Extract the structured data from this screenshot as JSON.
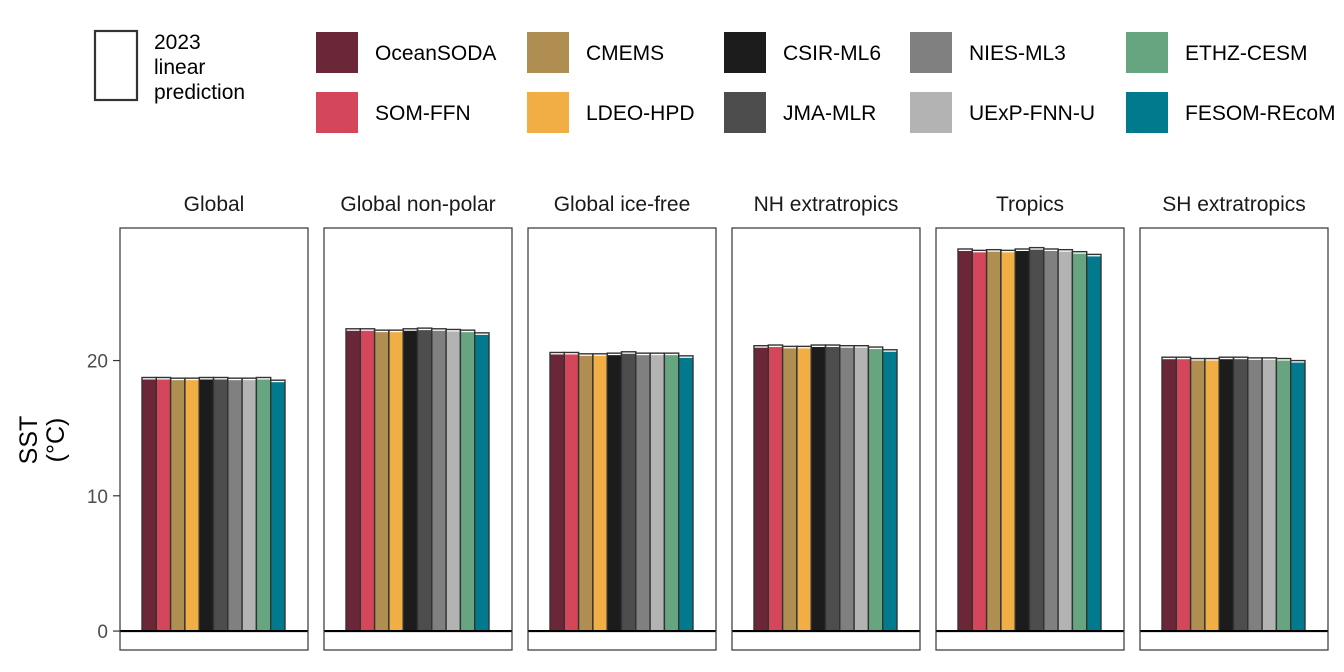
{
  "legend": {
    "linear_prediction_label": [
      "2023",
      "linear",
      "prediction"
    ],
    "products": [
      {
        "name": "OceanSODA",
        "color": "#6B2737"
      },
      {
        "name": "SOM-FFN",
        "color": "#D4475B"
      },
      {
        "name": "CMEMS",
        "color": "#B08E52"
      },
      {
        "name": "LDEO-HPD",
        "color": "#F0AE45"
      },
      {
        "name": "CSIR-ML6",
        "color": "#1C1C1C"
      },
      {
        "name": "JMA-MLR",
        "color": "#4D4D4D"
      },
      {
        "name": "NIES-ML3",
        "color": "#808080"
      },
      {
        "name": "UExP-FNN-U",
        "color": "#B3B3B3"
      },
      {
        "name": "ETHZ-CESM",
        "color": "#66A57F"
      },
      {
        "name": "FESOM-REcoM",
        "color": "#007A8C"
      }
    ]
  },
  "chart_data": {
    "type": "bar",
    "ylabel": [
      "SST",
      "(°C)"
    ],
    "ylim": [
      -1.4,
      29.8
    ],
    "yticks": [
      0,
      10,
      20
    ],
    "grid": false,
    "legend_position": "top",
    "categories": [
      "OceanSODA",
      "SOM-FFN",
      "CMEMS",
      "LDEO-HPD",
      "CSIR-ML6",
      "JMA-MLR",
      "NIES-ML3",
      "UExP-FNN-U",
      "ETHZ-CESM",
      "FESOM-REcoM"
    ],
    "panels": [
      {
        "name": "Global",
        "values": [
          18.6,
          18.6,
          18.55,
          18.55,
          18.6,
          18.6,
          18.55,
          18.55,
          18.6,
          18.4
        ]
      },
      {
        "name": "Global non-polar",
        "values": [
          22.2,
          22.2,
          22.1,
          22.1,
          22.2,
          22.25,
          22.2,
          22.15,
          22.1,
          21.9
        ]
      },
      {
        "name": "Global ice-free",
        "values": [
          20.45,
          20.45,
          20.35,
          20.35,
          20.4,
          20.5,
          20.4,
          20.4,
          20.4,
          20.2
        ]
      },
      {
        "name": "NH extratropics",
        "values": [
          20.95,
          21.0,
          20.9,
          20.9,
          21.0,
          21.0,
          20.95,
          20.95,
          20.85,
          20.65
        ]
      },
      {
        "name": "Tropics",
        "values": [
          28.1,
          28.0,
          28.05,
          28.0,
          28.1,
          28.2,
          28.1,
          28.05,
          27.9,
          27.7
        ]
      },
      {
        "name": "SH extratropics",
        "values": [
          20.1,
          20.1,
          20.0,
          20.0,
          20.1,
          20.1,
          20.05,
          20.05,
          20.0,
          19.85
        ]
      }
    ]
  }
}
